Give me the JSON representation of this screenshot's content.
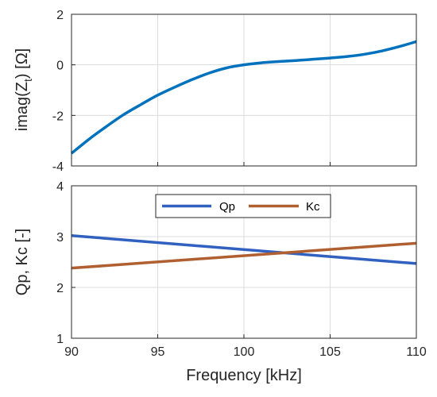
{
  "chart_data": [
    {
      "type": "line",
      "ylabel_main": "imag(Z",
      "ylabel_sub": "t",
      "ylabel_tail": ") [Ω]",
      "xlim": [
        90,
        110
      ],
      "ylim": [
        -4,
        2
      ],
      "xticks": [
        90,
        95,
        100,
        105,
        110
      ],
      "yticks": [
        "2",
        "0",
        "-2",
        "-4"
      ],
      "grid": true,
      "series": [
        {
          "color": "#0072BD",
          "x": [
            90,
            91,
            92,
            93,
            94,
            95,
            96,
            97,
            98,
            99,
            100,
            101,
            102,
            103,
            104,
            105,
            106,
            107,
            108,
            109,
            110
          ],
          "y": [
            -3.5,
            -2.95,
            -2.45,
            -1.98,
            -1.58,
            -1.2,
            -0.88,
            -0.58,
            -0.32,
            -0.12,
            0.0,
            0.08,
            0.13,
            0.17,
            0.22,
            0.27,
            0.33,
            0.42,
            0.55,
            0.72,
            0.92
          ]
        }
      ]
    },
    {
      "type": "line",
      "ylabel": "Qp, Kc [-]",
      "xlabel": "Frequency [kHz]",
      "xlim": [
        90,
        110
      ],
      "ylim": [
        1,
        4
      ],
      "xticks": [
        "90",
        "95",
        "100",
        "105",
        "110"
      ],
      "yticks": [
        "4",
        "3",
        "2",
        "1"
      ],
      "grid": true,
      "legend": "top-center",
      "series": [
        {
          "name": "Qp",
          "color": "#3060C0",
          "x": [
            90,
            110
          ],
          "y": [
            3.02,
            2.47
          ]
        },
        {
          "name": "Kc",
          "color": "#B06030",
          "x": [
            90,
            110
          ],
          "y": [
            2.38,
            2.87
          ]
        }
      ]
    }
  ]
}
